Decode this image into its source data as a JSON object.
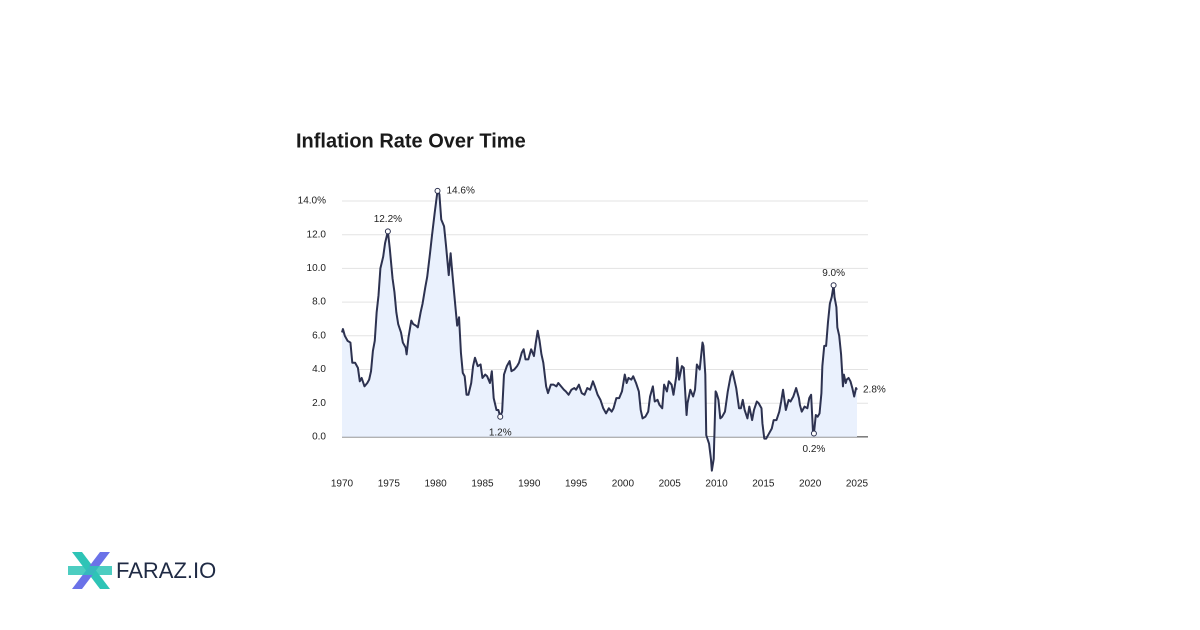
{
  "chart_data": {
    "type": "line",
    "title": "Inflation Rate Over Time",
    "x": [
      1970.0,
      1970.1,
      1970.3,
      1970.6,
      1970.9,
      1971.1,
      1971.4,
      1971.7,
      1971.9,
      1972.1,
      1972.4,
      1972.7,
      1972.9,
      1973.1,
      1973.3,
      1973.5,
      1973.7,
      1973.9,
      1974.1,
      1974.4,
      1974.6,
      1974.9,
      1975.1,
      1975.4,
      1975.6,
      1975.8,
      1976.0,
      1976.3,
      1976.5,
      1976.8,
      1976.9,
      1977.1,
      1977.4,
      1977.6,
      1977.9,
      1978.1,
      1978.4,
      1978.6,
      1978.9,
      1979.1,
      1979.4,
      1979.6,
      1979.9,
      1980.2,
      1980.4,
      1980.6,
      1980.9,
      1981.1,
      1981.4,
      1981.6,
      1981.8,
      1982.0,
      1982.3,
      1982.5,
      1982.7,
      1982.9,
      1983.1,
      1983.3,
      1983.5,
      1983.8,
      1984.0,
      1984.2,
      1984.5,
      1984.8,
      1985.0,
      1985.3,
      1985.5,
      1985.8,
      1986.0,
      1986.2,
      1986.5,
      1986.7,
      1986.9,
      1987.1,
      1987.3,
      1987.6,
      1987.9,
      1988.1,
      1988.4,
      1988.7,
      1988.9,
      1989.2,
      1989.4,
      1989.6,
      1989.9,
      1990.2,
      1990.5,
      1990.7,
      1990.9,
      1991.1,
      1991.3,
      1991.5,
      1991.8,
      1992.0,
      1992.3,
      1992.6,
      1992.9,
      1993.1,
      1993.4,
      1993.7,
      1993.9,
      1994.2,
      1994.5,
      1994.8,
      1995.0,
      1995.3,
      1995.6,
      1995.9,
      1996.2,
      1996.5,
      1996.8,
      1997.0,
      1997.3,
      1997.6,
      1997.9,
      1998.2,
      1998.5,
      1998.8,
      1999.0,
      1999.3,
      1999.6,
      1999.9,
      2000.2,
      2000.4,
      2000.6,
      2000.9,
      2001.1,
      2001.4,
      2001.7,
      2001.9,
      2002.1,
      2002.4,
      2002.7,
      2002.9,
      2003.2,
      2003.4,
      2003.7,
      2003.9,
      2004.2,
      2004.4,
      2004.7,
      2004.9,
      2005.2,
      2005.4,
      2005.7,
      2005.8,
      2006.0,
      2006.3,
      2006.5,
      2006.8,
      2006.9,
      2007.2,
      2007.5,
      2007.7,
      2007.9,
      2008.2,
      2008.5,
      2008.6,
      2008.8,
      2008.9,
      2009.2,
      2009.4,
      2009.5,
      2009.7,
      2009.9,
      2010.0,
      2010.2,
      2010.4,
      2010.6,
      2010.9,
      2011.2,
      2011.5,
      2011.7,
      2011.9,
      2012.1,
      2012.4,
      2012.6,
      2012.8,
      2013.0,
      2013.3,
      2013.5,
      2013.8,
      2014.0,
      2014.3,
      2014.5,
      2014.8,
      2014.9,
      2015.1,
      2015.3,
      2015.6,
      2015.9,
      2016.1,
      2016.4,
      2016.7,
      2016.9,
      2017.1,
      2017.4,
      2017.7,
      2017.9,
      2018.2,
      2018.5,
      2018.8,
      2018.9,
      2019.1,
      2019.4,
      2019.7,
      2019.9,
      2020.1,
      2020.3,
      2020.4,
      2020.6,
      2020.8,
      2021.0,
      2021.2,
      2021.3,
      2021.5,
      2021.7,
      2021.9,
      2022.1,
      2022.3,
      2022.5,
      2022.6,
      2022.8,
      2022.9,
      2023.1,
      2023.3,
      2023.5,
      2023.6,
      2023.8,
      2023.9,
      2024.1,
      2024.3,
      2024.5,
      2024.7,
      2024.9,
      2025.0
    ],
    "series": [
      {
        "name": "Inflation Rate",
        "color": "#2d3250",
        "values": [
          6.2,
          6.4,
          6.0,
          5.7,
          5.6,
          4.4,
          4.4,
          4.1,
          3.3,
          3.5,
          3.0,
          3.2,
          3.4,
          3.9,
          5.1,
          5.7,
          7.4,
          8.4,
          10.0,
          10.7,
          11.5,
          12.2,
          11.2,
          9.4,
          8.6,
          7.4,
          6.7,
          6.2,
          5.6,
          5.3,
          4.9,
          5.9,
          6.9,
          6.7,
          6.6,
          6.5,
          7.4,
          7.9,
          8.9,
          9.5,
          10.9,
          11.9,
          13.3,
          14.6,
          14.4,
          12.9,
          12.5,
          11.4,
          9.6,
          10.9,
          9.6,
          8.4,
          6.6,
          7.1,
          5.0,
          3.8,
          3.6,
          2.5,
          2.5,
          3.2,
          4.2,
          4.7,
          4.2,
          4.3,
          3.5,
          3.7,
          3.6,
          3.2,
          3.9,
          2.3,
          1.6,
          1.6,
          1.2,
          1.5,
          3.7,
          4.2,
          4.5,
          3.9,
          4.0,
          4.2,
          4.4,
          5.0,
          5.2,
          4.6,
          4.6,
          5.2,
          4.8,
          5.6,
          6.3,
          5.7,
          4.9,
          4.4,
          3.0,
          2.6,
          3.1,
          3.1,
          3.0,
          3.2,
          3.0,
          2.8,
          2.7,
          2.5,
          2.8,
          2.9,
          2.8,
          3.1,
          2.6,
          2.5,
          2.9,
          2.8,
          3.3,
          3.0,
          2.5,
          2.2,
          1.7,
          1.4,
          1.7,
          1.5,
          1.7,
          2.3,
          2.3,
          2.7,
          3.7,
          3.2,
          3.5,
          3.4,
          3.6,
          3.2,
          2.7,
          1.6,
          1.1,
          1.2,
          1.5,
          2.4,
          3.0,
          2.1,
          2.2,
          1.9,
          1.7,
          3.1,
          2.7,
          3.3,
          3.1,
          2.5,
          3.6,
          4.7,
          3.4,
          4.2,
          4.1,
          1.3,
          2.0,
          2.8,
          2.4,
          2.8,
          4.3,
          4.0,
          5.6,
          5.4,
          3.7,
          0.1,
          -0.4,
          -1.3,
          -2.0,
          -1.3,
          2.7,
          2.6,
          2.2,
          1.1,
          1.2,
          1.5,
          2.7,
          3.6,
          3.9,
          3.4,
          2.9,
          1.7,
          1.7,
          2.2,
          1.6,
          1.1,
          1.8,
          1.0,
          1.6,
          2.1,
          2.0,
          1.7,
          0.8,
          -0.1,
          -0.1,
          0.2,
          0.5,
          1.0,
          1.0,
          1.5,
          2.1,
          2.8,
          1.6,
          2.2,
          2.1,
          2.4,
          2.9,
          2.3,
          1.9,
          1.5,
          1.8,
          1.7,
          2.3,
          2.5,
          0.3,
          0.2,
          1.3,
          1.2,
          1.4,
          2.6,
          4.2,
          5.4,
          5.4,
          6.8,
          7.9,
          8.3,
          9.0,
          8.3,
          7.7,
          6.5,
          6.0,
          4.9,
          3.0,
          3.7,
          3.2,
          3.4,
          3.5,
          3.3,
          2.9,
          2.4,
          2.9,
          2.8
        ]
      }
    ],
    "area_color": "#eaf1fd",
    "xlim": [
      1970,
      2025
    ],
    "xticks": [
      1970,
      1975,
      1980,
      1985,
      1990,
      1995,
      2000,
      2005,
      2010,
      2015,
      2020,
      2025
    ],
    "ylim": [
      -2.2,
      14.8
    ],
    "yticks": [
      {
        "value": 0,
        "label": "0.0"
      },
      {
        "value": 2,
        "label": "2.0"
      },
      {
        "value": 4,
        "label": "4.0"
      },
      {
        "value": 6,
        "label": "6.0"
      },
      {
        "value": 8,
        "label": "8.0"
      },
      {
        "value": 10,
        "label": "10.0"
      },
      {
        "value": 12,
        "label": "12.0"
      },
      {
        "value": 14,
        "label": "14.0%"
      }
    ],
    "grid": true,
    "annotations": [
      {
        "x": 1974.9,
        "y": 12.2,
        "label": "12.2%"
      },
      {
        "x": 1980.2,
        "y": 14.6,
        "label": "14.6%"
      },
      {
        "x": 1986.9,
        "y": 1.2,
        "label": "1.2%"
      },
      {
        "x": 2020.4,
        "y": 0.2,
        "label": "0.2%"
      },
      {
        "x": 2022.5,
        "y": 9.0,
        "label": "9.0%"
      },
      {
        "x": 2025.0,
        "y": 2.8,
        "label": "2.8%"
      }
    ]
  },
  "logo": {
    "text": "FARAZ.IO"
  }
}
